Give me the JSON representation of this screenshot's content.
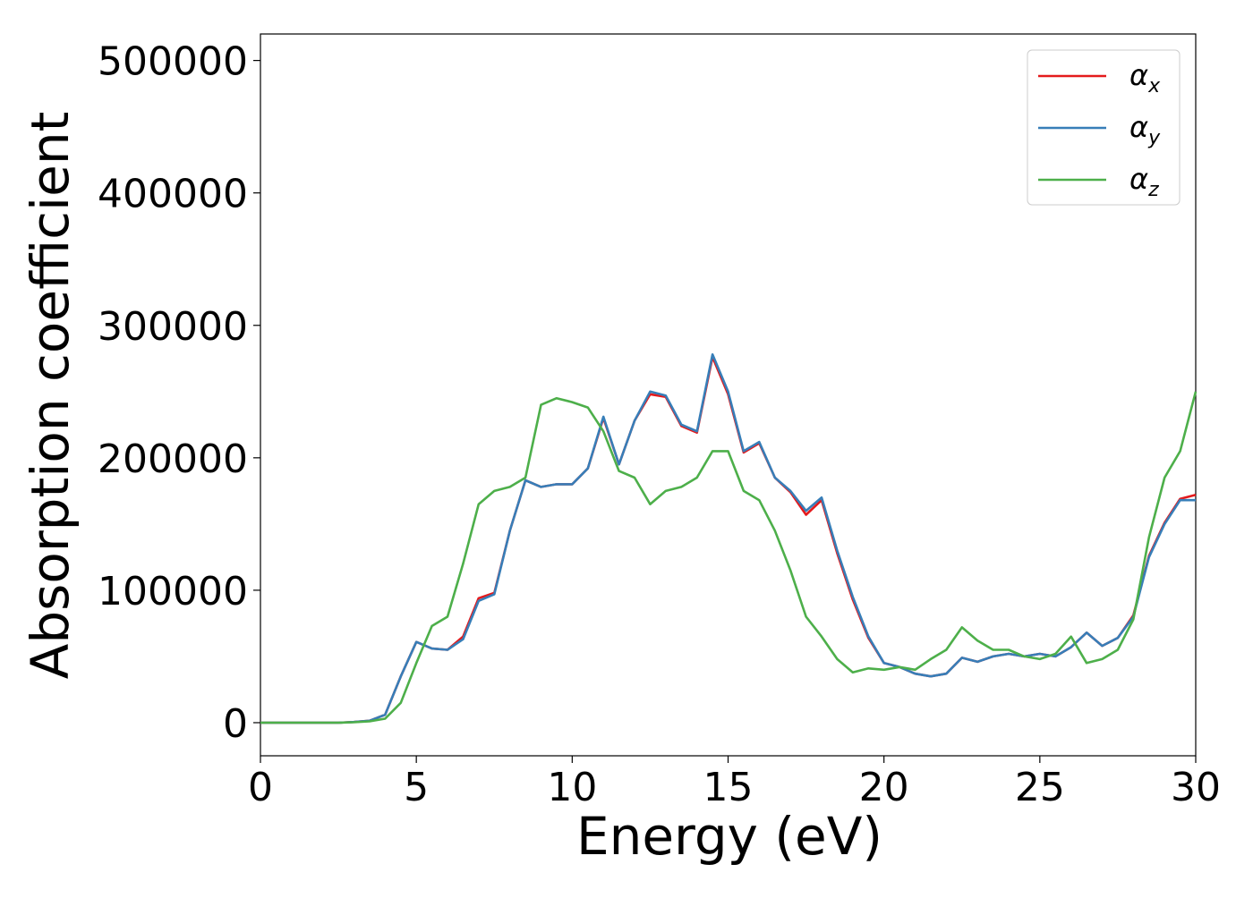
{
  "chart_data": {
    "type": "line",
    "xlabel": "Energy (eV)",
    "ylabel": "Absorption coefficient",
    "x": [
      0,
      0.5,
      1,
      1.5,
      2,
      2.5,
      3,
      3.5,
      4,
      4.5,
      5,
      5.5,
      6,
      6.5,
      7,
      7.5,
      8,
      8.5,
      9,
      9.5,
      10,
      10.5,
      11,
      11.5,
      12,
      12.5,
      13,
      13.5,
      14,
      14.5,
      15,
      15.5,
      16,
      16.5,
      17,
      17.5,
      18,
      18.5,
      19,
      19.5,
      20,
      20.5,
      21,
      21.5,
      22,
      22.5,
      23,
      23.5,
      24,
      24.5,
      25,
      25.5,
      26,
      26.5,
      27,
      27.5,
      28,
      28.5,
      29,
      29.5,
      30
    ],
    "series": [
      {
        "name": "αx",
        "color": "#e41a1c",
        "values": [
          0,
          0,
          0,
          0,
          0,
          0,
          500,
          1500,
          6000,
          35000,
          61000,
          56000,
          55000,
          65000,
          94000,
          98000,
          145000,
          183000,
          178000,
          180000,
          180000,
          192000,
          230000,
          195000,
          228000,
          248000,
          246000,
          224000,
          219000,
          276000,
          248000,
          204000,
          211000,
          185000,
          174000,
          157000,
          168000,
          128000,
          93000,
          64000,
          45000,
          42000,
          37000,
          35000,
          37000,
          49000,
          46000,
          50000,
          52000,
          50000,
          52000,
          50000,
          57000,
          68000,
          58000,
          64000,
          81000,
          126000,
          151000,
          169000,
          172000
        ]
      },
      {
        "name": "αy",
        "color": "#377eb8",
        "values": [
          0,
          0,
          0,
          0,
          0,
          0,
          500,
          1500,
          6000,
          35000,
          61000,
          56000,
          55000,
          63000,
          92000,
          97000,
          145000,
          183000,
          178000,
          180000,
          180000,
          192000,
          231000,
          195000,
          228000,
          250000,
          247000,
          225000,
          220000,
          278000,
          250000,
          205000,
          212000,
          185000,
          175000,
          160000,
          170000,
          130000,
          95000,
          65000,
          45000,
          42000,
          37000,
          35000,
          37000,
          49000,
          46000,
          50000,
          52000,
          50000,
          52000,
          50000,
          57000,
          68000,
          58000,
          64000,
          80000,
          125000,
          150000,
          168000,
          168000
        ]
      },
      {
        "name": "αz",
        "color": "#4daf4a",
        "values": [
          0,
          0,
          0,
          0,
          0,
          0,
          300,
          1000,
          3000,
          15000,
          45000,
          73000,
          80000,
          120000,
          165000,
          175000,
          178000,
          185000,
          240000,
          245000,
          242000,
          238000,
          220000,
          190000,
          185000,
          165000,
          175000,
          178000,
          185000,
          205000,
          205000,
          175000,
          168000,
          145000,
          115000,
          80000,
          65000,
          48000,
          38000,
          41000,
          40000,
          42000,
          40000,
          48000,
          55000,
          72000,
          62000,
          55000,
          55000,
          50000,
          48000,
          52000,
          65000,
          45000,
          48000,
          55000,
          78000,
          140000,
          185000,
          205000,
          250000
        ]
      }
    ],
    "xlim": [
      0,
      30
    ],
    "xticks": [
      0,
      5,
      10,
      15,
      20,
      25,
      30
    ],
    "ylim": [
      -25000,
      520000
    ],
    "yticks": [
      0,
      100000,
      200000,
      300000,
      400000,
      500000
    ],
    "legend": "upper right"
  }
}
